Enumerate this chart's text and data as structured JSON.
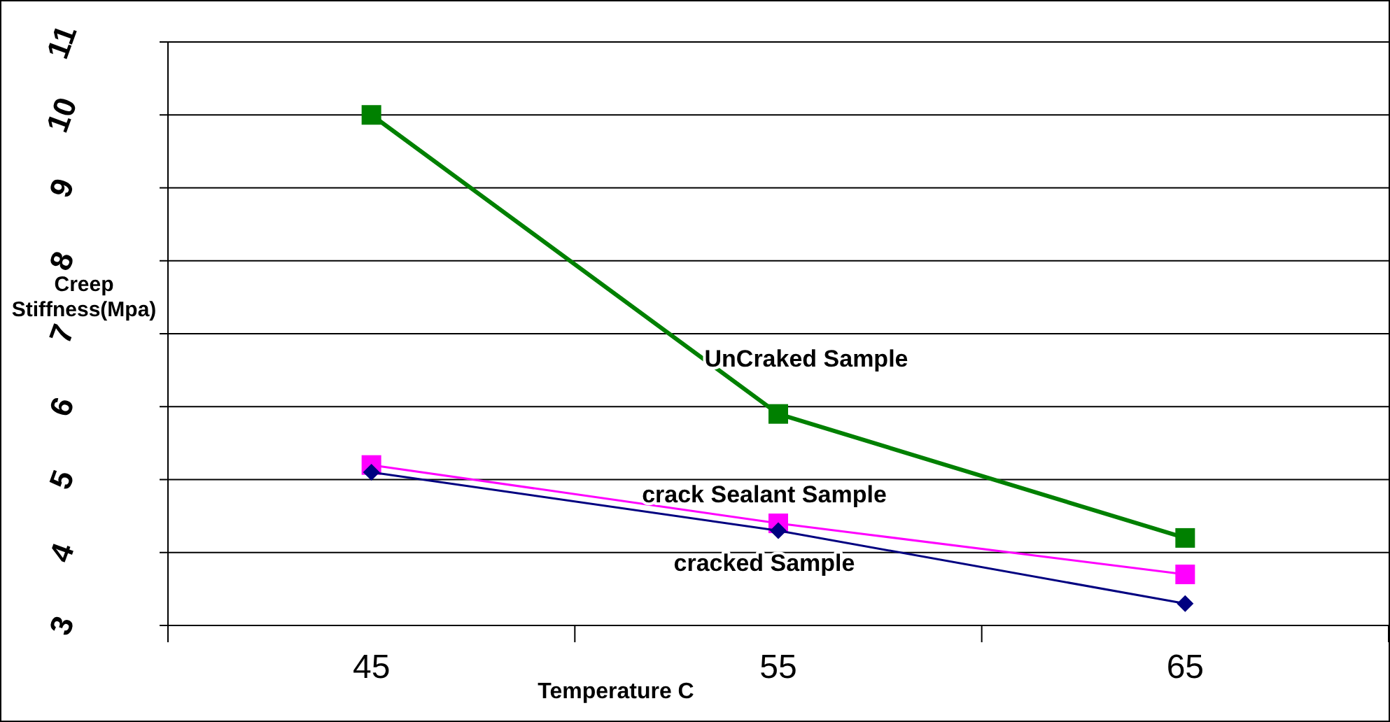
{
  "chart_data": {
    "type": "line",
    "xlabel": "Temperature C",
    "ylabel": "Creep Stiffness(Mpa)",
    "categories": [
      "45",
      "55",
      "65"
    ],
    "ylim": [
      3,
      11
    ],
    "yticks": [
      3,
      4,
      5,
      6,
      7,
      8,
      9,
      10,
      11
    ],
    "grid": "y",
    "legend": false,
    "series": [
      {
        "name": "UnCraked Sample",
        "color": "#008000",
        "values": [
          10.0,
          5.9,
          4.2
        ],
        "marker": "square"
      },
      {
        "name": "crack Sealant Sample",
        "color": "#ff00ff",
        "values": [
          5.2,
          4.4,
          3.7
        ],
        "marker": "square"
      },
      {
        "name": "cracked Sample",
        "color": "#000080",
        "values": [
          5.1,
          4.3,
          3.3
        ],
        "marker": "diamond"
      }
    ]
  }
}
